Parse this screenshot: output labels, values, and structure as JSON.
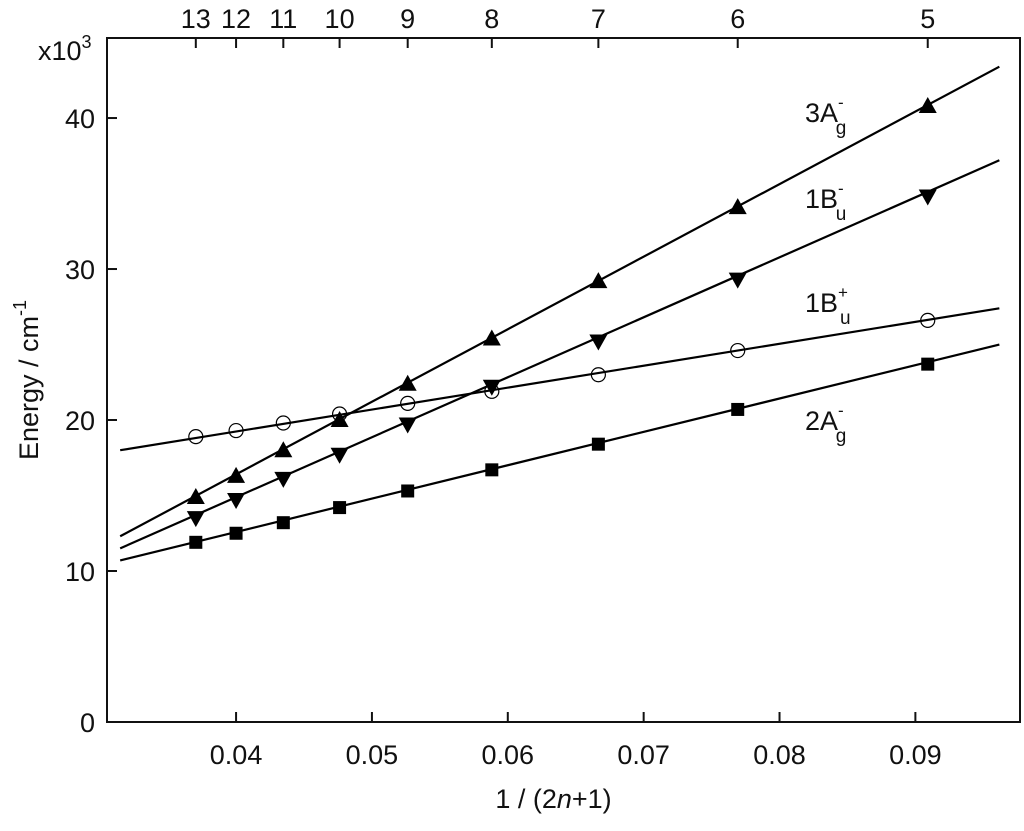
{
  "chart_data": {
    "type": "scatter",
    "xlabel": {
      "before": "1 / (2",
      "italic": "n",
      "after": "+1)"
    },
    "ylabel": {
      "main": "Energy / cm",
      "sup": "-1"
    },
    "y_multiplier": {
      "base": "x10",
      "sup": "3"
    },
    "xlim": [
      0.0305,
      0.0977
    ],
    "ylim": [
      0,
      45.3
    ],
    "xticks": [
      0.04,
      0.05,
      0.06,
      0.07,
      0.08,
      0.09
    ],
    "yticks": [
      0,
      10,
      20,
      30,
      40
    ],
    "x2ticks": [
      {
        "value": 0.037037,
        "label": "13"
      },
      {
        "value": 0.04,
        "label": "12"
      },
      {
        "value": 0.043478,
        "label": "11"
      },
      {
        "value": 0.047619,
        "label": "10"
      },
      {
        "value": 0.052632,
        "label": "9"
      },
      {
        "value": 0.058824,
        "label": "8"
      },
      {
        "value": 0.066667,
        "label": "7"
      },
      {
        "value": 0.076923,
        "label": "6"
      },
      {
        "value": 0.090909,
        "label": "5"
      }
    ],
    "x": [
      0.037037,
      0.04,
      0.043478,
      0.047619,
      0.052632,
      0.058824,
      0.066667,
      0.076923,
      0.090909
    ],
    "series": [
      {
        "name": "3A",
        "sub": "g",
        "sup": "-",
        "marker": "triangle-up",
        "color": "#000000",
        "values": [
          14.9,
          16.3,
          18.0,
          20.0,
          22.4,
          25.4,
          29.2,
          34.1,
          40.8
        ],
        "fit": {
          "x": [
            0.03147,
            0.09618
          ],
          "values": [
            12.3,
            43.4
          ]
        }
      },
      {
        "name": "1B",
        "sub": "u",
        "sup": "-",
        "marker": "triangle-down",
        "color": "#000000",
        "values": [
          13.5,
          14.7,
          16.1,
          17.7,
          19.7,
          22.2,
          25.2,
          29.3,
          34.8
        ],
        "fit": {
          "x": [
            0.03147,
            0.09618
          ],
          "values": [
            11.5,
            37.2
          ]
        }
      },
      {
        "name": "1B",
        "sub": "u",
        "sup": "+",
        "marker": "circle-open",
        "color": "#000000",
        "values": [
          18.9,
          19.3,
          19.8,
          20.4,
          21.1,
          21.9,
          23.0,
          24.6,
          26.6
        ],
        "fit": {
          "x": [
            0.03147,
            0.09618
          ],
          "values": [
            18.0,
            27.4
          ]
        }
      },
      {
        "name": "2A",
        "sub": "g",
        "sup": "-",
        "marker": "square",
        "color": "#000000",
        "values": [
          11.9,
          12.5,
          13.2,
          14.2,
          15.3,
          16.7,
          18.4,
          20.7,
          23.7
        ],
        "fit": {
          "x": [
            0.03147,
            0.09618
          ],
          "values": [
            10.7,
            25.0
          ]
        }
      }
    ]
  }
}
